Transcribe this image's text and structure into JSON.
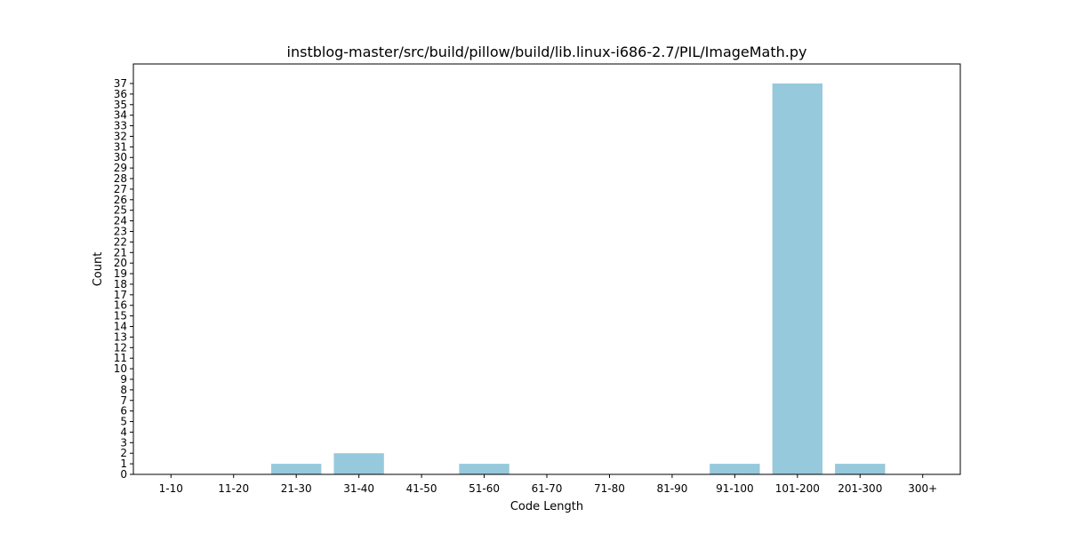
{
  "chart_data": {
    "type": "bar",
    "title": "instblog-master/src/build/pillow/build/lib.linux-i686-2.7/PIL/ImageMath.py",
    "xlabel": "Code Length",
    "ylabel": "Count",
    "categories": [
      "1-10",
      "11-20",
      "21-30",
      "31-40",
      "41-50",
      "51-60",
      "61-70",
      "71-80",
      "81-90",
      "91-100",
      "101-200",
      "201-300",
      "300+"
    ],
    "values": [
      0,
      0,
      1,
      2,
      0,
      1,
      0,
      0,
      0,
      1,
      37,
      1,
      0
    ],
    "ylim": [
      0,
      38.85
    ],
    "yticks": [
      0,
      1,
      2,
      3,
      4,
      5,
      6,
      7,
      8,
      9,
      10,
      11,
      12,
      13,
      14,
      15,
      16,
      17,
      18,
      19,
      20,
      21,
      22,
      23,
      24,
      25,
      26,
      27,
      28,
      29,
      30,
      31,
      32,
      33,
      34,
      35,
      36,
      37
    ],
    "grid": false,
    "bar_color": "#96c9dc"
  }
}
